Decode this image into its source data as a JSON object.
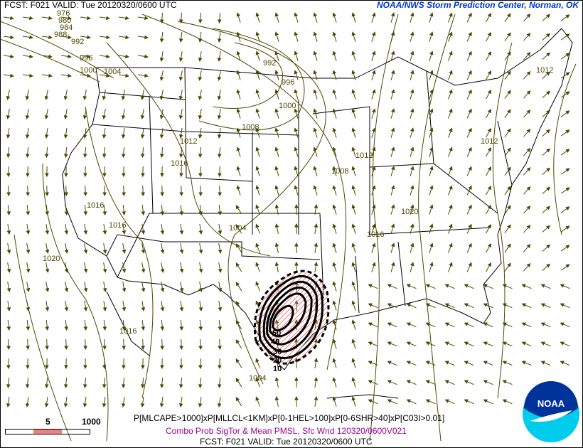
{
  "header": {
    "left": "FCST: F021  VALID: Tue  20120320/0600 UTC",
    "right": "NOAA/NWS Storm Prediction Center, Norman, OK"
  },
  "footer": {
    "formula": "P[MLCAPE>1000]xP[MLLCL<1KM]xP[0-1HEL>100]xP[0-6SHR>40]xP[C03I>0.01]",
    "subtitle": "Combo Prob SigTor & Mean PMSL, Sfc Wnd 120320/0600V021",
    "valid": "FCST: F021  VALID: Tue  20120320/0600 UTC"
  },
  "legend": {
    "low": "5",
    "high": "1000",
    "fill_color": "#f08080"
  },
  "logo": {
    "text": "NOAA"
  },
  "colors": {
    "isobar": "#4d4800",
    "wind": "#4d4800",
    "border": "#000000",
    "sigtor_contour": "#000000",
    "sigtor_hatch": "#f08080",
    "header_right": "#0033cc",
    "subtitle": "#990099"
  },
  "isobar_labels": [
    "976",
    "980",
    "984",
    "988",
    "992",
    "996",
    "1000",
    "1004",
    "992",
    "996",
    "1000",
    "1008",
    "1012",
    "1016",
    "1016",
    "1016",
    "1020",
    "1016",
    "1004",
    "1004",
    "1008",
    "1012",
    "1016",
    "1020",
    "1012",
    "1012"
  ],
  "sigtor_labels": [
    "50",
    "40",
    "30",
    "20",
    "10"
  ]
}
